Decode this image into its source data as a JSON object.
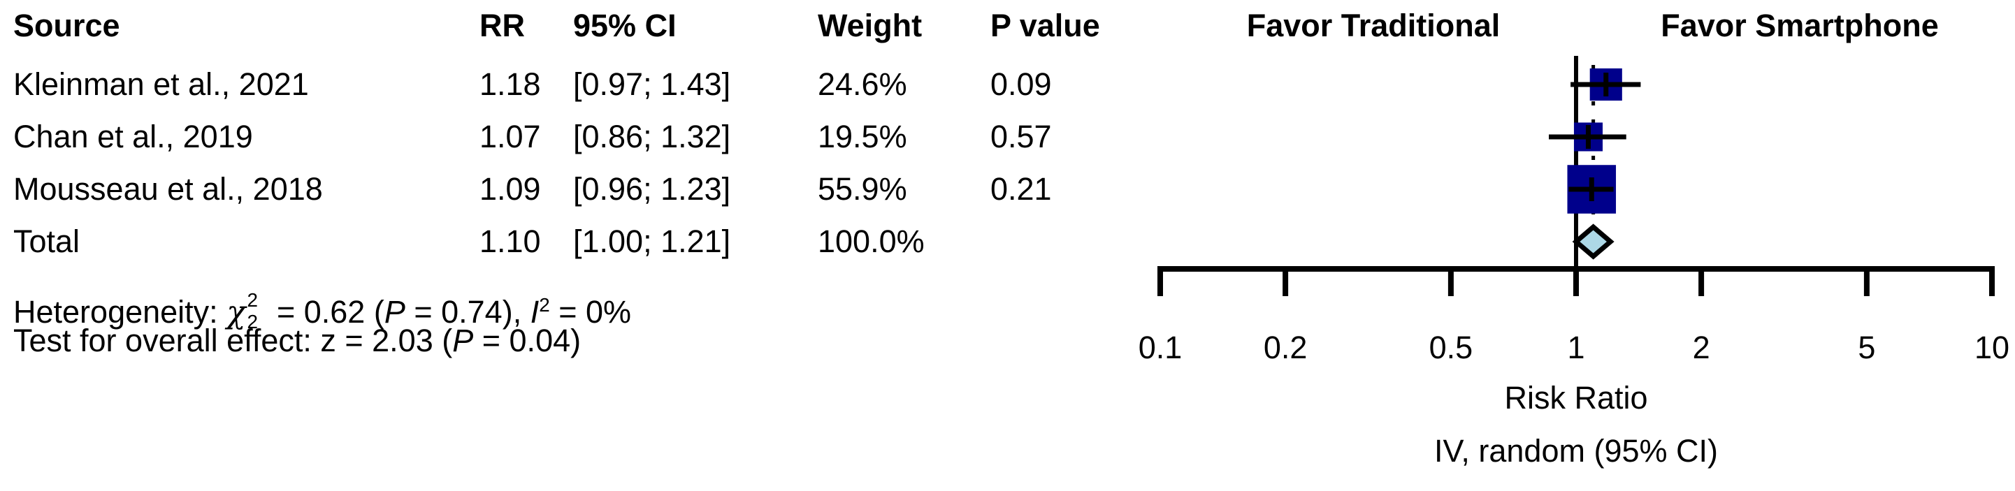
{
  "table": {
    "headers": {
      "source": "Source",
      "rr": "RR",
      "ci": "95% CI",
      "weight": "Weight",
      "pvalue": "P value"
    },
    "rows": [
      {
        "source": "Kleinman et al., 2021",
        "rr": "1.18",
        "ci": "[0.97; 1.43]",
        "weight": "24.6%",
        "pvalue": "0.09"
      },
      {
        "source": "Chan et al., 2019",
        "rr": "1.07",
        "ci": "[0.86; 1.32]",
        "weight": "19.5%",
        "pvalue": "0.57"
      },
      {
        "source": "Mousseau et al., 2018",
        "rr": "1.09",
        "ci": "[0.96; 1.23]",
        "weight": "55.9%",
        "pvalue": "0.21"
      },
      {
        "source": "Total",
        "rr": "1.10",
        "ci": "[1.00; 1.21]",
        "weight": "100.0%",
        "pvalue": ""
      }
    ]
  },
  "footnotes": {
    "het": {
      "prefix": "Heterogeneity: ",
      "chi": "χ",
      "sup": "2",
      "sub": "2",
      "mid": " = 0.62 (",
      "p": "P",
      "after_p": " = 0.74), ",
      "i": "I",
      "i_sup": "2",
      "tail": " = 0%"
    },
    "test": {
      "prefix": "Test for overall effect: z = 2.03 (",
      "p": "P",
      "tail": " = 0.04)"
    }
  },
  "chart_data": {
    "type": "forest",
    "x_scale": "log10",
    "x_ticks": [
      0.1,
      0.2,
      0.5,
      1,
      2,
      5,
      10
    ],
    "x_range": [
      0.1,
      10
    ],
    "reference_line_x": 1,
    "pooled_estimate_line_x": 1.1,
    "xlabel": "Risk Ratio",
    "xlabel2": "IV, random (95% CI)",
    "favor_left": "Favor Traditional",
    "favor_right": "Favor Smartphone",
    "studies": [
      {
        "name": "Kleinman et al., 2021",
        "rr": 1.18,
        "ci_low": 0.97,
        "ci_high": 1.43,
        "weight_pct": 24.6,
        "p_value": 0.09
      },
      {
        "name": "Chan et al., 2019",
        "rr": 1.07,
        "ci_low": 0.86,
        "ci_high": 1.32,
        "weight_pct": 19.5,
        "p_value": 0.57
      },
      {
        "name": "Mousseau et al., 2018",
        "rr": 1.09,
        "ci_low": 0.96,
        "ci_high": 1.23,
        "weight_pct": 55.9,
        "p_value": 0.21
      }
    ],
    "total": {
      "rr": 1.1,
      "ci_low": 1.0,
      "ci_high": 1.21,
      "weight_pct": 100.0
    },
    "heterogeneity": {
      "chi2": 0.62,
      "df": 2,
      "p": 0.74,
      "i2_pct": 0
    },
    "overall_effect_test": {
      "z": 2.03,
      "p": 0.04
    },
    "colors": {
      "square": "#00008B",
      "diamond_fill": "#ADD8E6",
      "lines": "#000000"
    }
  }
}
